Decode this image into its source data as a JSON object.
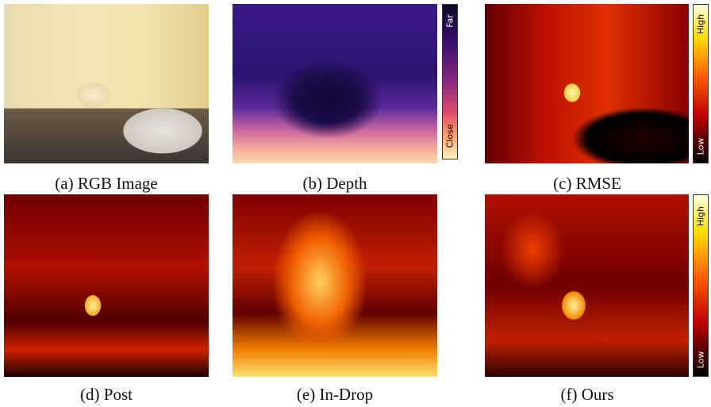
{
  "panels": [
    {
      "caption": "(a) RGB Image"
    },
    {
      "caption": "(b) Depth",
      "colorbar": {
        "top": "Far",
        "bottom": "Close"
      }
    },
    {
      "caption": "(c) RMSE",
      "colorbar": {
        "top": "High",
        "bottom": "Low"
      }
    },
    {
      "caption": "(d) Post"
    },
    {
      "caption": "(e) In-Drop"
    },
    {
      "caption": "(f) Ours",
      "colorbar": {
        "top": "High",
        "bottom": "Low"
      }
    }
  ]
}
